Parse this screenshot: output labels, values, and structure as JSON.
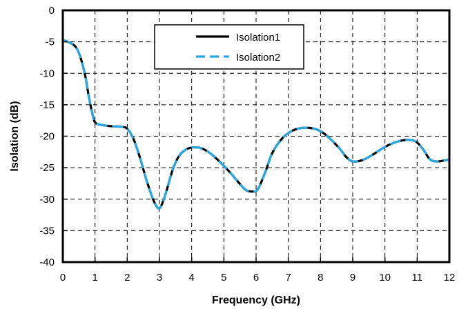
{
  "chart_data": {
    "type": "line",
    "title": "",
    "xlabel": "Frequency (GHz)",
    "ylabel": "Isolation (dB)",
    "xlim": [
      0,
      12
    ],
    "ylim": [
      -40,
      0
    ],
    "xticks": [
      0,
      1,
      2,
      3,
      4,
      5,
      6,
      7,
      8,
      9,
      10,
      11,
      12
    ],
    "yticks": [
      0,
      -5,
      -10,
      -15,
      -20,
      -25,
      -30,
      -35,
      -40
    ],
    "grid": true,
    "legend_position": "top-center",
    "series": [
      {
        "name": "Isolation1",
        "color": "#000000",
        "dash": "solid",
        "x": [
          0,
          0.2,
          0.4,
          0.55,
          0.7,
          0.8,
          0.9,
          1.0,
          1.2,
          1.5,
          1.8,
          2.0,
          2.2,
          2.4,
          2.6,
          2.8,
          2.95,
          3.05,
          3.2,
          3.4,
          3.6,
          3.8,
          4.0,
          4.3,
          4.6,
          4.9,
          5.2,
          5.5,
          5.7,
          5.9,
          6.0,
          6.1,
          6.3,
          6.5,
          6.8,
          7.1,
          7.4,
          7.7,
          8.0,
          8.3,
          8.6,
          8.8,
          9.0,
          9.3,
          9.6,
          9.9,
          10.2,
          10.5,
          10.8,
          11.0,
          11.2,
          11.4,
          11.6,
          11.8,
          12.0
        ],
        "values": [
          -4.7,
          -5.1,
          -5.8,
          -7.5,
          -10.5,
          -13.5,
          -16.0,
          -17.8,
          -18.2,
          -18.4,
          -18.5,
          -18.8,
          -20.5,
          -23.5,
          -27.0,
          -30.0,
          -31.4,
          -31.1,
          -29.0,
          -25.5,
          -23.2,
          -22.2,
          -21.8,
          -21.9,
          -22.8,
          -24.2,
          -25.8,
          -27.6,
          -28.6,
          -28.8,
          -28.7,
          -28.0,
          -25.5,
          -22.7,
          -20.4,
          -19.2,
          -18.7,
          -18.7,
          -19.2,
          -20.4,
          -22.0,
          -23.3,
          -24.0,
          -23.8,
          -23.0,
          -22.0,
          -21.2,
          -20.7,
          -20.6,
          -21.0,
          -22.2,
          -23.7,
          -24.0,
          -23.9,
          -23.7
        ]
      },
      {
        "name": "Isolation2",
        "color": "#29a9e1",
        "dash": "dashed",
        "x": [
          0,
          0.2,
          0.4,
          0.55,
          0.7,
          0.8,
          0.9,
          1.0,
          1.2,
          1.5,
          1.8,
          2.0,
          2.2,
          2.4,
          2.6,
          2.8,
          2.95,
          3.05,
          3.2,
          3.4,
          3.6,
          3.8,
          4.0,
          4.3,
          4.6,
          4.9,
          5.2,
          5.5,
          5.7,
          5.9,
          6.0,
          6.1,
          6.3,
          6.5,
          6.8,
          7.1,
          7.4,
          7.7,
          8.0,
          8.3,
          8.6,
          8.8,
          9.0,
          9.3,
          9.6,
          9.9,
          10.2,
          10.5,
          10.8,
          11.0,
          11.2,
          11.4,
          11.6,
          11.8,
          12.0
        ],
        "values": [
          -4.7,
          -5.1,
          -5.8,
          -7.5,
          -10.5,
          -13.5,
          -16.0,
          -17.8,
          -18.2,
          -18.4,
          -18.5,
          -18.8,
          -20.5,
          -23.5,
          -27.0,
          -30.0,
          -31.4,
          -31.1,
          -29.0,
          -25.5,
          -23.2,
          -22.2,
          -21.8,
          -21.9,
          -22.8,
          -24.2,
          -25.8,
          -27.6,
          -28.6,
          -28.8,
          -28.7,
          -28.0,
          -25.5,
          -22.7,
          -20.4,
          -19.2,
          -18.7,
          -18.7,
          -19.2,
          -20.4,
          -22.0,
          -23.3,
          -24.0,
          -23.8,
          -23.0,
          -22.0,
          -21.2,
          -20.7,
          -20.6,
          -21.0,
          -22.2,
          -23.7,
          -24.0,
          -23.9,
          -23.7
        ]
      }
    ]
  }
}
